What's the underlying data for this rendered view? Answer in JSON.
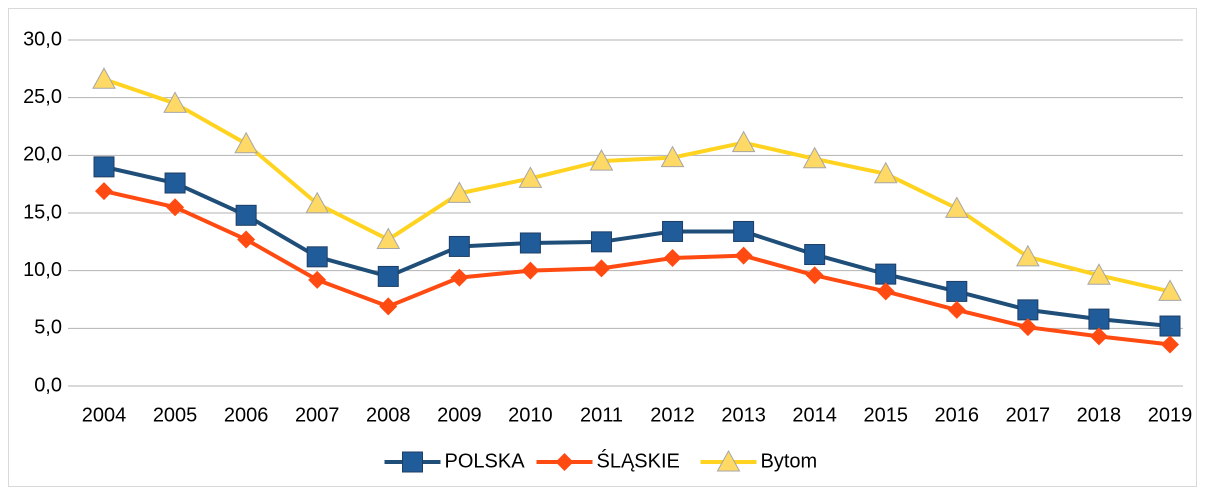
{
  "chart_data": {
    "type": "line",
    "categories": [
      "2004",
      "2005",
      "2006",
      "2007",
      "2008",
      "2009",
      "2010",
      "2011",
      "2012",
      "2013",
      "2014",
      "2015",
      "2016",
      "2017",
      "2018",
      "2019"
    ],
    "series": [
      {
        "name": "POLSKA",
        "color": "#1f4e79",
        "marker_color": "#1f5c99",
        "marker": "square",
        "values": [
          19.0,
          17.6,
          14.8,
          11.2,
          9.5,
          12.1,
          12.4,
          12.5,
          13.4,
          13.4,
          11.4,
          9.7,
          8.2,
          6.6,
          5.8,
          5.2
        ]
      },
      {
        "name": "ŚLĄSKIE",
        "color": "#ff4b12",
        "marker_color": "#ff4b12",
        "marker": "diamond",
        "values": [
          16.9,
          15.5,
          12.7,
          9.2,
          6.9,
          9.4,
          10.0,
          10.2,
          11.1,
          11.3,
          9.6,
          8.2,
          6.6,
          5.1,
          4.3,
          3.6
        ]
      },
      {
        "name": "Bytom",
        "color": "#ffd320",
        "marker_color": "#ffd966",
        "marker": "triangle",
        "values": [
          26.6,
          24.5,
          21.0,
          15.8,
          12.7,
          16.7,
          18.0,
          19.5,
          19.8,
          21.1,
          19.7,
          18.4,
          15.4,
          11.2,
          9.6,
          8.2
        ]
      }
    ],
    "ylim": [
      0,
      30
    ],
    "yticks": [
      {
        "value": 0,
        "label": "0,0"
      },
      {
        "value": 5,
        "label": "5,0"
      },
      {
        "value": 10,
        "label": "10,0"
      },
      {
        "value": 15,
        "label": "15,0"
      },
      {
        "value": 20,
        "label": "20,0"
      },
      {
        "value": 25,
        "label": "25,0"
      },
      {
        "value": 30,
        "label": "30,0"
      }
    ],
    "grid": true,
    "legend": "bottom"
  }
}
